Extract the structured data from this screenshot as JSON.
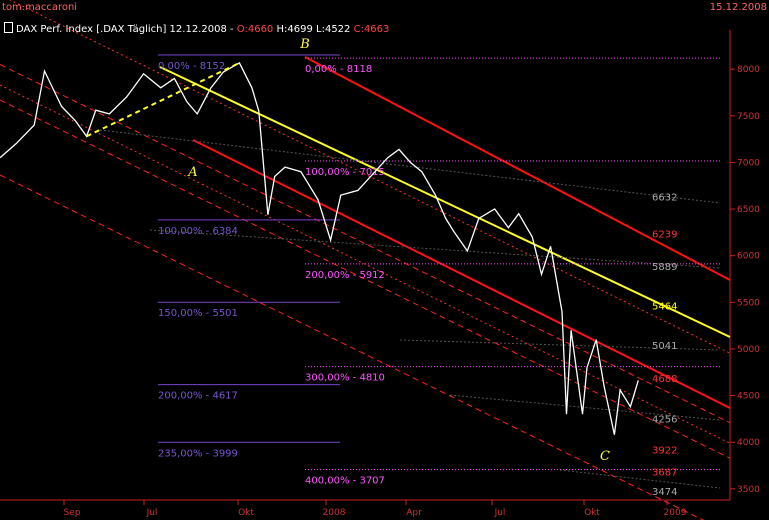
{
  "header": {
    "author": "tom.maccaroni",
    "date": "15.12.2008",
    "title": "DAX Perf. Index [.DAX  Täglich] 12.12.2008 - ",
    "open_label": "O:4660",
    "high_label": "H:4699",
    "low_label": "L:4522",
    "close_label": "C:4663"
  },
  "colors": {
    "background": "#000000",
    "price": "#ffffff",
    "channel_red": "#ff0000",
    "centerline_yellow": "#ffff00",
    "fib_left": "#8855dd",
    "fib_right": "#ff55ff",
    "wave_labels": "#ffff33"
  },
  "chart_data": {
    "type": "line",
    "instrument": "DAX Perf. Index",
    "timeframe": "Täglich",
    "x_axis_labels": [
      "Sep",
      "Jul",
      "Okt",
      "2008",
      "Apr",
      "Jul",
      "Okt",
      "2009"
    ],
    "y_ticks": [
      8000,
      7500,
      7000,
      6500,
      6000,
      5500,
      5000,
      4500,
      4000,
      3500
    ],
    "ylim": [
      3380,
      8420
    ],
    "price_series": [
      [
        "2007-06-01",
        7050
      ],
      [
        "2007-06-15",
        7200
      ],
      [
        "2007-07-01",
        7400
      ],
      [
        "2007-07-10",
        7980
      ],
      [
        "2007-07-25",
        7600
      ],
      [
        "2007-08-06",
        7450
      ],
      [
        "2007-08-16",
        7280
      ],
      [
        "2007-08-24",
        7560
      ],
      [
        "2007-09-05",
        7520
      ],
      [
        "2007-09-20",
        7700
      ],
      [
        "2007-10-05",
        7950
      ],
      [
        "2007-10-20",
        7800
      ],
      [
        "2007-11-01",
        7900
      ],
      [
        "2007-11-12",
        7650
      ],
      [
        "2007-11-21",
        7520
      ],
      [
        "2007-12-03",
        7800
      ],
      [
        "2007-12-14",
        7970
      ],
      [
        "2007-12-28",
        8067
      ],
      [
        "2008-01-08",
        7800
      ],
      [
        "2008-01-14",
        7550
      ],
      [
        "2008-01-22",
        6439
      ],
      [
        "2008-01-28",
        6850
      ],
      [
        "2008-02-06",
        6950
      ],
      [
        "2008-02-20",
        6900
      ],
      [
        "2008-03-06",
        6600
      ],
      [
        "2008-03-17",
        6167
      ],
      [
        "2008-03-26",
        6650
      ],
      [
        "2008-04-10",
        6700
      ],
      [
        "2008-04-25",
        6900
      ],
      [
        "2008-05-06",
        7050
      ],
      [
        "2008-05-16",
        7140
      ],
      [
        "2008-05-26",
        7000
      ],
      [
        "2008-06-05",
        6900
      ],
      [
        "2008-06-17",
        6650
      ],
      [
        "2008-06-26",
        6400
      ],
      [
        "2008-07-03",
        6260
      ],
      [
        "2008-07-15",
        6050
      ],
      [
        "2008-07-25",
        6400
      ],
      [
        "2008-08-08",
        6500
      ],
      [
        "2008-08-20",
        6300
      ],
      [
        "2008-08-29",
        6450
      ],
      [
        "2008-09-10",
        6200
      ],
      [
        "2008-09-18",
        5800
      ],
      [
        "2008-09-26",
        6100
      ],
      [
        "2008-10-06",
        5400
      ],
      [
        "2008-10-10",
        4300
      ],
      [
        "2008-10-14",
        5200
      ],
      [
        "2008-10-24",
        4300
      ],
      [
        "2008-10-28",
        4800
      ],
      [
        "2008-11-05",
        5100
      ],
      [
        "2008-11-12",
        4600
      ],
      [
        "2008-11-21",
        4080
      ],
      [
        "2008-11-26",
        4560
      ],
      [
        "2008-12-05",
        4380
      ],
      [
        "2008-12-12",
        4663
      ]
    ],
    "annotations": {
      "wave_labels": [
        "A",
        "B",
        "C"
      ],
      "wave_points": [
        [
          "A",
          "2007-08-16",
          7280
        ],
        [
          "B",
          "2007-12-28",
          8067
        ],
        [
          "C",
          "2008-11-21",
          4080
        ]
      ]
    },
    "fib_levels_left": [
      {
        "label": "0,00% - 8152",
        "value": 8152
      },
      {
        "label": "100,00% - 6384",
        "value": 6384
      },
      {
        "label": "150,00% - 5501",
        "value": 5501
      },
      {
        "label": "200,00% - 4617",
        "value": 4617
      },
      {
        "label": "235,00% - 3999",
        "value": 3999
      }
    ],
    "fib_levels_right": [
      {
        "label": "0,00% - 8118",
        "value": 8118
      },
      {
        "label": "100,00% - 7015",
        "value": 7015
      },
      {
        "label": "200,00% - 5912",
        "value": 5912
      },
      {
        "label": "300,00% - 4810",
        "value": 4810
      },
      {
        "label": "400,00% - 3707",
        "value": 3707
      }
    ],
    "right_labels": [
      {
        "text": "6632",
        "value": 6632,
        "color": "#aaaaaa"
      },
      {
        "text": "6239",
        "value": 6239,
        "color": "#ff3333"
      },
      {
        "text": "5889",
        "value": 5889,
        "color": "#aaaaaa"
      },
      {
        "text": "5464",
        "value": 5464,
        "color": "#ffff00"
      },
      {
        "text": "5041",
        "value": 5041,
        "color": "#aaaaaa"
      },
      {
        "text": "4688",
        "value": 4688,
        "color": "#ff3333"
      },
      {
        "text": "4256",
        "value": 4256,
        "color": "#aaaaaa"
      },
      {
        "text": "3922",
        "value": 3922,
        "color": "#ff3333"
      },
      {
        "text": "3687",
        "value": 3687,
        "color": "#ff3333"
      },
      {
        "text": "3474",
        "value": 3474,
        "color": "#aaaaaa"
      }
    ]
  }
}
